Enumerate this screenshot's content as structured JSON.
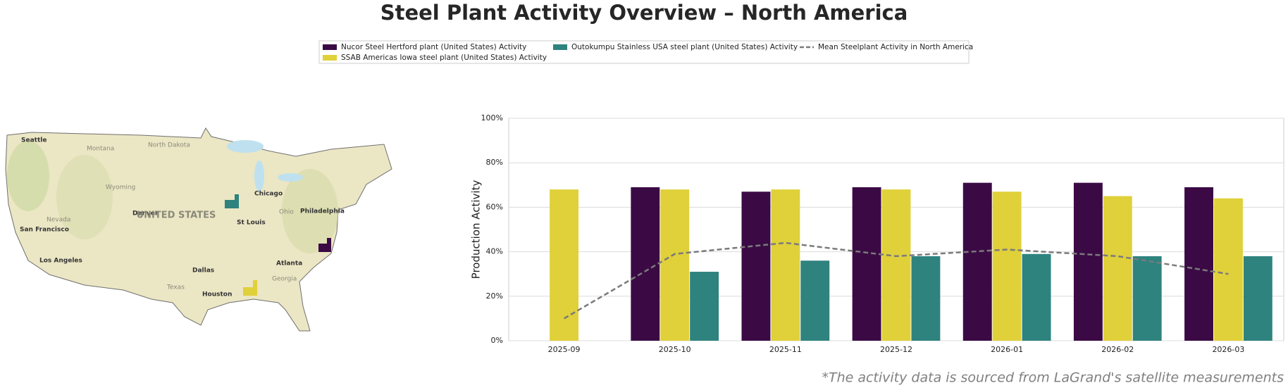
{
  "chart_data": {
    "type": "bar",
    "title": "Steel Plant Activity Overview – North America",
    "ylabel": "Production Activity",
    "footnote": "*The activity data is sourced from LaGrand's satellite measurements",
    "categories": [
      "2025-09",
      "2025-10",
      "2025-11",
      "2025-12",
      "2026-01",
      "2026-02",
      "2026-03"
    ],
    "series": [
      {
        "name": "Nucor Steel Hertford plant (United States) Activity",
        "type": "bar",
        "color": "#3b0a45",
        "values": [
          null,
          69,
          67,
          69,
          71,
          71,
          69
        ]
      },
      {
        "name": "SSAB Americas Iowa steel plant (United States) Activity",
        "type": "bar",
        "color": "#e0d03a",
        "values": [
          68,
          68,
          68,
          68,
          67,
          65,
          64
        ]
      },
      {
        "name": "Outokumpu Stainless USA steel plant (United States) Activity",
        "type": "bar",
        "color": "#2e837f",
        "values": [
          null,
          31,
          36,
          38,
          39,
          38,
          38
        ]
      },
      {
        "name": "Mean Steelplant Activity in North America",
        "type": "line",
        "dashed": true,
        "color": "#7a7a7a",
        "values": [
          10,
          39,
          44,
          38,
          41,
          38,
          30
        ]
      }
    ],
    "ylim": [
      0,
      100
    ],
    "yticks": [
      {
        "value": 0,
        "label": "0%"
      },
      {
        "value": 20,
        "label": "20%"
      },
      {
        "value": 40,
        "label": "40%"
      },
      {
        "value": 60,
        "label": "60%"
      },
      {
        "value": 80,
        "label": "80%"
      },
      {
        "value": 100,
        "label": "100%"
      }
    ],
    "grid": true,
    "map": {
      "labels": [
        "Seattle",
        "San Francisco",
        "Los Angeles",
        "Denver",
        "Chicago",
        "St Louis",
        "Dallas",
        "Houston",
        "Atlanta",
        "Philadelphia",
        "UNITED STATES",
        "Montana",
        "North Dakota",
        "Wyoming",
        "Nevada",
        "Texas",
        "Ohio",
        "Georgia"
      ]
    }
  }
}
